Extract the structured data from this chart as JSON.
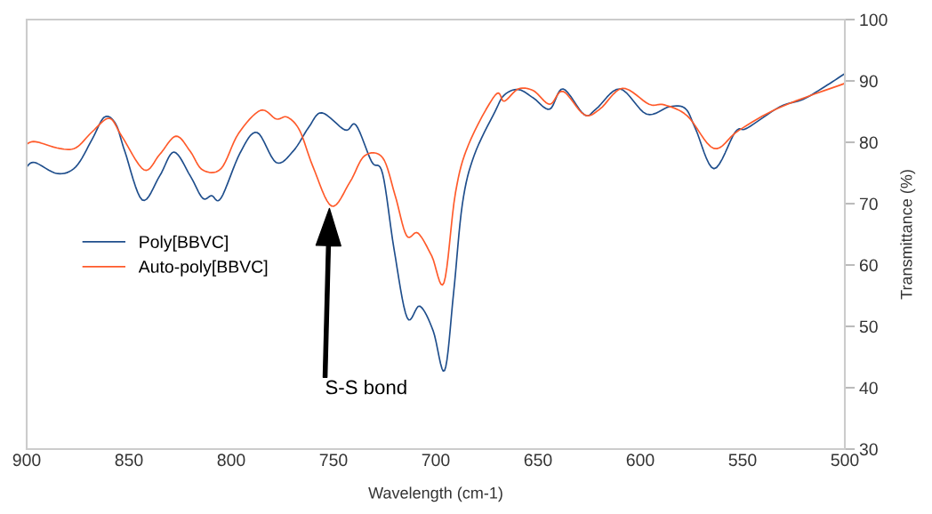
{
  "chart_data": {
    "type": "line",
    "xlabel": "Wavelength (cm-1)",
    "ylabel": "Transmittance (%)",
    "xlim": [
      900,
      500
    ],
    "xticks": [
      900,
      850,
      800,
      750,
      700,
      650,
      600,
      550,
      500
    ],
    "ylim": [
      30,
      100
    ],
    "yticks": [
      30,
      40,
      50,
      60,
      70,
      80,
      90,
      100
    ],
    "grid": false,
    "legend": "left",
    "marker": "none",
    "line_style": "solid",
    "annotations": [
      "S-S bond"
    ],
    "series": [
      {
        "name": "Poly[BBVC]",
        "color": "#1f4e8c",
        "x": [
          900,
          896,
          885,
          876,
          868,
          862,
          856.5,
          852,
          843.5,
          835,
          828,
          820,
          814,
          809.6,
          805,
          795.6,
          787.4,
          778,
          769.6,
          762,
          755.7,
          744.3,
          739,
          731.3,
          726,
          720.4,
          714,
          707.8,
          701.3,
          695.7,
          691.3,
          687,
          681.3,
          670.9,
          666.5,
          659.6,
          652.2,
          644.3,
          637.8,
          627.4,
          621.7,
          610,
          597,
          585.7,
          578,
          573,
          564,
          553.5,
          547.8,
          531.7,
          520.4,
          508.7,
          500
        ],
        "values": [
          76.0,
          76.7,
          74.9,
          76.0,
          80.5,
          84.1,
          83.0,
          78.5,
          70.6,
          74.5,
          78.4,
          74.5,
          70.9,
          71.3,
          70.9,
          78.3,
          81.6,
          76.7,
          78.6,
          82.5,
          84.8,
          82.0,
          82.8,
          76.8,
          74.9,
          62.6,
          51.4,
          53.3,
          49.3,
          42.8,
          55.4,
          69.9,
          77.8,
          85.1,
          87.7,
          88.6,
          87.2,
          85.4,
          88.7,
          84.5,
          85.4,
          88.7,
          84.6,
          85.8,
          85.5,
          82.2,
          75.7,
          81.7,
          82.3,
          85.8,
          87.0,
          89.3,
          91.2
        ]
      },
      {
        "name": "Auto-poly[BBVC]",
        "color": "#ff5a2a",
        "x": [
          900,
          895.7,
          884,
          876,
          868,
          859.6,
          853.5,
          842.6,
          835,
          827,
          820,
          814,
          805,
          796.5,
          785.7,
          778,
          772.6,
          766.5,
          760,
          750.9,
          742,
          734.8,
          726,
          720,
          714.3,
          708.7,
          702,
          696,
          690.4,
          684,
          670.9,
          666.5,
          659.6,
          652.2,
          644.3,
          637.8,
          627.4,
          619.8,
          608.7,
          595.7,
          588.3,
          577,
          564,
          552,
          531.7,
          500
        ],
        "values": [
          79.7,
          80.1,
          79.0,
          79.1,
          81.7,
          83.9,
          81.0,
          75.5,
          78.0,
          81.0,
          78.5,
          75.5,
          75.7,
          81.4,
          85.2,
          83.8,
          84.1,
          81.9,
          76.0,
          69.6,
          73.5,
          77.8,
          77.5,
          71.5,
          64.8,
          65.2,
          61.5,
          57.1,
          71.7,
          79.6,
          87.7,
          86.7,
          88.7,
          88.4,
          86.2,
          88.3,
          84.5,
          85.4,
          88.8,
          86.2,
          86.1,
          84.3,
          79.0,
          81.9,
          85.7,
          89.6
        ]
      }
    ]
  }
}
